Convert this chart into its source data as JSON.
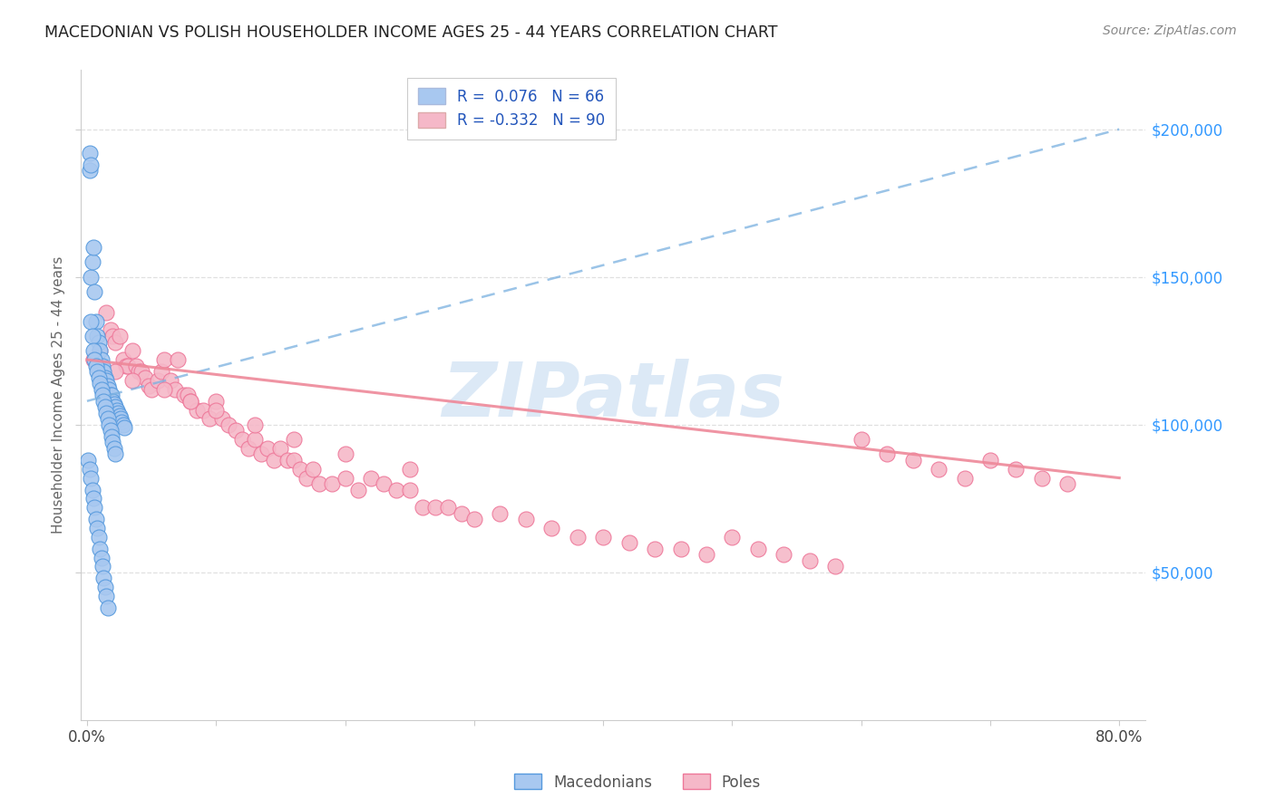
{
  "title": "MACEDONIAN VS POLISH HOUSEHOLDER INCOME AGES 25 - 44 YEARS CORRELATION CHART",
  "source": "Source: ZipAtlas.com",
  "ylabel": "Householder Income Ages 25 - 44 years",
  "xlabel_ticks_pos": [
    0.0,
    0.1,
    0.2,
    0.3,
    0.4,
    0.5,
    0.6,
    0.7,
    0.8
  ],
  "xlabel_ticks_labels": [
    "0.0%",
    "",
    "",
    "",
    "",
    "",
    "",
    "",
    "80.0%"
  ],
  "ytick_labels": [
    "$50,000",
    "$100,000",
    "$150,000",
    "$200,000"
  ],
  "ytick_values": [
    50000,
    100000,
    150000,
    200000
  ],
  "xlim": [
    -0.005,
    0.82
  ],
  "ylim": [
    0,
    220000
  ],
  "mac_R": 0.076,
  "mac_N": 66,
  "pol_R": -0.332,
  "pol_N": 90,
  "mac_color": "#a8c8f0",
  "pol_color": "#f5b8c8",
  "mac_edge_color": "#5599dd",
  "pol_edge_color": "#ee7799",
  "mac_line_color": "#7ab0e0",
  "pol_line_color": "#ee8899",
  "mac_scatter_x": [
    0.002,
    0.002,
    0.003,
    0.003,
    0.004,
    0.005,
    0.006,
    0.007,
    0.008,
    0.009,
    0.01,
    0.011,
    0.012,
    0.013,
    0.014,
    0.015,
    0.016,
    0.017,
    0.018,
    0.019,
    0.02,
    0.021,
    0.022,
    0.023,
    0.024,
    0.025,
    0.026,
    0.027,
    0.028,
    0.029,
    0.003,
    0.004,
    0.005,
    0.006,
    0.007,
    0.008,
    0.009,
    0.01,
    0.011,
    0.012,
    0.013,
    0.014,
    0.015,
    0.016,
    0.017,
    0.018,
    0.019,
    0.02,
    0.021,
    0.022,
    0.001,
    0.002,
    0.003,
    0.004,
    0.005,
    0.006,
    0.007,
    0.008,
    0.009,
    0.01,
    0.011,
    0.012,
    0.013,
    0.014,
    0.015,
    0.016
  ],
  "mac_scatter_y": [
    192000,
    186000,
    188000,
    150000,
    155000,
    160000,
    145000,
    135000,
    130000,
    128000,
    125000,
    122000,
    120000,
    118000,
    116000,
    115000,
    113000,
    112000,
    110000,
    110000,
    108000,
    107000,
    106000,
    105000,
    104000,
    103000,
    102000,
    101000,
    100000,
    99000,
    135000,
    130000,
    125000,
    122000,
    120000,
    118000,
    116000,
    114000,
    112000,
    110000,
    108000,
    106000,
    104000,
    102000,
    100000,
    98000,
    96000,
    94000,
    92000,
    90000,
    88000,
    85000,
    82000,
    78000,
    75000,
    72000,
    68000,
    65000,
    62000,
    58000,
    55000,
    52000,
    48000,
    45000,
    42000,
    38000
  ],
  "pol_scatter_x": [
    0.005,
    0.01,
    0.015,
    0.018,
    0.02,
    0.022,
    0.025,
    0.028,
    0.03,
    0.032,
    0.035,
    0.038,
    0.04,
    0.042,
    0.045,
    0.048,
    0.05,
    0.055,
    0.058,
    0.06,
    0.065,
    0.068,
    0.07,
    0.075,
    0.078,
    0.08,
    0.085,
    0.09,
    0.095,
    0.1,
    0.105,
    0.11,
    0.115,
    0.12,
    0.125,
    0.13,
    0.135,
    0.14,
    0.145,
    0.15,
    0.155,
    0.16,
    0.165,
    0.17,
    0.175,
    0.18,
    0.19,
    0.2,
    0.21,
    0.22,
    0.23,
    0.24,
    0.25,
    0.26,
    0.27,
    0.28,
    0.29,
    0.3,
    0.32,
    0.34,
    0.36,
    0.38,
    0.4,
    0.42,
    0.44,
    0.46,
    0.48,
    0.5,
    0.52,
    0.54,
    0.56,
    0.58,
    0.6,
    0.62,
    0.64,
    0.66,
    0.68,
    0.7,
    0.72,
    0.74,
    0.76,
    0.022,
    0.035,
    0.06,
    0.08,
    0.1,
    0.13,
    0.16,
    0.2,
    0.25
  ],
  "pol_scatter_y": [
    122000,
    125000,
    138000,
    132000,
    130000,
    128000,
    130000,
    122000,
    120000,
    120000,
    125000,
    120000,
    118000,
    118000,
    116000,
    113000,
    112000,
    115000,
    118000,
    122000,
    115000,
    112000,
    122000,
    110000,
    110000,
    108000,
    105000,
    105000,
    102000,
    108000,
    102000,
    100000,
    98000,
    95000,
    92000,
    95000,
    90000,
    92000,
    88000,
    92000,
    88000,
    88000,
    85000,
    82000,
    85000,
    80000,
    80000,
    82000,
    78000,
    82000,
    80000,
    78000,
    78000,
    72000,
    72000,
    72000,
    70000,
    68000,
    70000,
    68000,
    65000,
    62000,
    62000,
    60000,
    58000,
    58000,
    56000,
    62000,
    58000,
    56000,
    54000,
    52000,
    95000,
    90000,
    88000,
    85000,
    82000,
    88000,
    85000,
    82000,
    80000,
    118000,
    115000,
    112000,
    108000,
    105000,
    100000,
    95000,
    90000,
    85000
  ],
  "mac_trend_x": [
    0.0,
    0.8
  ],
  "mac_trend_y": [
    108000,
    200000
  ],
  "pol_trend_x": [
    0.0,
    0.8
  ],
  "pol_trend_y": [
    122000,
    82000
  ],
  "watermark": "ZIPatlas",
  "watermark_color": "#c0d8f0",
  "background_color": "#ffffff",
  "grid_color": "#dddddd",
  "spine_color": "#cccccc"
}
